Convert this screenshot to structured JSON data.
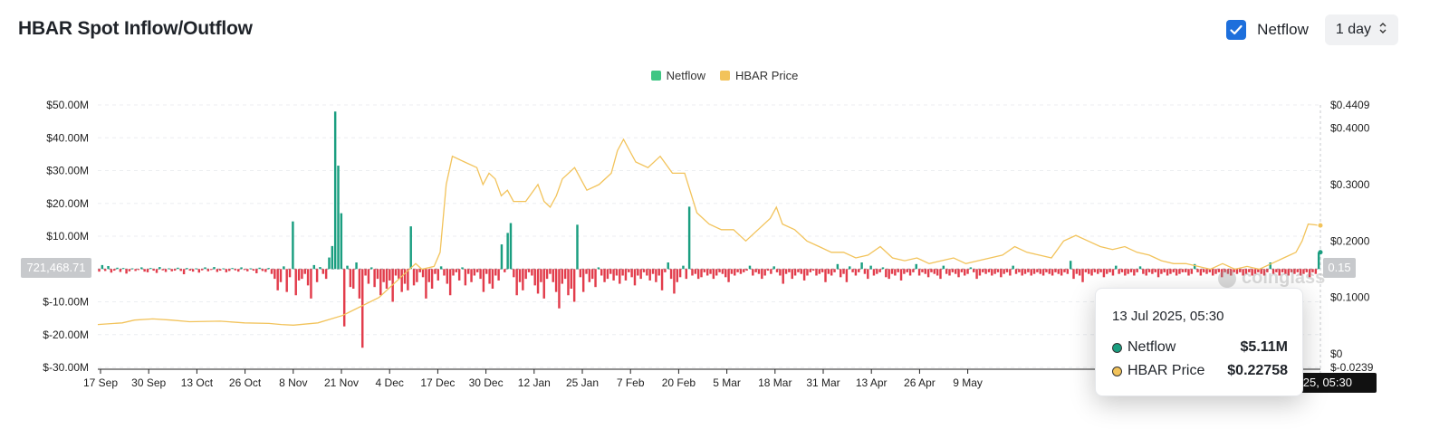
{
  "header": {
    "title": "HBAR Spot Inflow/Outflow",
    "netflow_toggle_label": "Netflow",
    "netflow_checked": true,
    "interval_label": "1 day"
  },
  "tooltip": {
    "time": "13 Jul 2025, 05:30",
    "rows": [
      {
        "name": "Netflow",
        "value": "$5.11M",
        "color": "#1a9e80"
      },
      {
        "name": "HBAR Price",
        "value": "$0.22758",
        "color": "#f2c35b"
      }
    ]
  },
  "crosshair": {
    "time_badge": "13 Jul 2025, 05:30",
    "left_badge": "721,468.71",
    "right_badge": "0.15"
  },
  "watermark": "coinglass",
  "chart_data": {
    "type": "bar+line",
    "title": "HBAR Spot Inflow/Outflow",
    "legend": {
      "position": "top-center",
      "entries": [
        "Netflow",
        "HBAR Price"
      ]
    },
    "colors": {
      "netflow_positive": "#1a9e80",
      "netflow_negative": "#e23c4b",
      "legend_netflow": "#3fc684",
      "price": "#f2c35b"
    },
    "x_tick_labels": [
      "17 Sep",
      "30 Sep",
      "13 Oct",
      "26 Oct",
      "8 Nov",
      "21 Nov",
      "4 Dec",
      "17 Dec",
      "30 Dec",
      "12 Jan",
      "25 Jan",
      "7 Feb",
      "20 Feb",
      "5 Mar",
      "18 Mar",
      "31 Mar",
      "13 Apr",
      "26 Apr",
      "9 May"
    ],
    "y_left": {
      "ticks": [
        "$50.00M",
        "$40.00M",
        "$30.00M",
        "$20.00M",
        "$10.00M",
        "$-10.00M",
        "$-20.00M",
        "$-30.00M"
      ],
      "range_millions": [
        -30,
        50
      ]
    },
    "y_right": {
      "ticks": [
        "$0.4409",
        "$0.4000",
        "$0.3000",
        "$0.2000",
        "$0.1000",
        "$0",
        "$-0.0239"
      ],
      "range": [
        -0.0239,
        0.4409
      ]
    },
    "series": [
      {
        "name": "Netflow",
        "unit": "millions USD",
        "values": [
          -0.8,
          1.2,
          -0.6,
          0.9,
          -1.1,
          -0.5,
          0.4,
          -0.9,
          0.3,
          -1.4,
          -0.7,
          0.2,
          -0.6,
          -0.3,
          0.5,
          -0.8,
          -1.0,
          0.3,
          -0.5,
          -1.2,
          0.6,
          -0.4,
          -0.9,
          0.2,
          -0.7,
          -0.5,
          0.4,
          -0.6,
          -1.6,
          0.3,
          -0.5,
          -0.8,
          0.2,
          -1.1,
          -0.4,
          0.5,
          -0.7,
          -0.3,
          0.6,
          -0.9,
          -0.5,
          0.2,
          -1.0,
          -0.6,
          0.3,
          -0.4,
          -0.8,
          0.5,
          -0.3,
          -0.7,
          0.2,
          -0.5,
          -1.3,
          0.4,
          -0.6,
          -0.9,
          0.3,
          -1.5,
          -3.0,
          -6.5,
          -4.0,
          0.8,
          -7.0,
          -2.5,
          14.5,
          -8.0,
          -3.5,
          -3.0,
          -1.5,
          -5.0,
          -9.0,
          1.2,
          -4.0,
          0.6,
          -1.5,
          -3.0,
          3.5,
          7.0,
          48.0,
          31.5,
          17.0,
          -17.5,
          1.0,
          -5.5,
          -6.0,
          2.0,
          -9.0,
          -24.0,
          -2.0,
          -4.5,
          0.5,
          -5.5,
          -3.0,
          -8.0,
          -4.0,
          -6.0,
          -3.5,
          -10.0,
          -2.0,
          -3.0,
          -7.0,
          -4.5,
          -6.5,
          13.0,
          -5.0,
          -4.0,
          -1.0,
          -2.5,
          -9.0,
          -4.0,
          -6.0,
          -1.5,
          -3.5,
          0.8,
          -2.0,
          -4.5,
          -8.0,
          -2.0,
          -1.0,
          -3.5,
          0.5,
          -5.0,
          -1.5,
          -4.0,
          -2.0,
          -1.0,
          -3.0,
          -7.0,
          -1.5,
          -4.5,
          -6.0,
          -2.0,
          -3.5,
          7.5,
          -1.0,
          11.0,
          14.0,
          -2.5,
          -8.0,
          -4.0,
          -6.5,
          -3.0,
          -1.0,
          -2.0,
          -5.0,
          -7.5,
          -4.0,
          -9.0,
          -3.0,
          -1.5,
          -4.0,
          -7.0,
          -12.0,
          -4.5,
          -3.0,
          -8.0,
          -6.0,
          -10.0,
          13.5,
          -2.5,
          -7.0,
          -1.5,
          -4.0,
          -3.0,
          -5.5,
          0.5,
          -2.0,
          -4.0,
          -3.0,
          -1.5,
          -3.5,
          -2.0,
          -4.5,
          -2.0,
          -3.5,
          -1.0,
          -2.5,
          -5.0,
          -2.0,
          -3.0,
          -1.0,
          -2.0,
          -3.5,
          -1.5,
          -4.0,
          -2.0,
          -6.5,
          -1.0,
          2.0,
          -3.0,
          -7.5,
          -4.0,
          -2.5,
          1.0,
          -3.0,
          19.0,
          -2.0,
          -1.5,
          -3.0,
          -2.5,
          -1.0,
          -2.0,
          -1.5,
          -3.0,
          -2.0,
          -1.0,
          -1.5,
          -2.5,
          -4.0,
          -1.5,
          -2.0,
          -1.0,
          -1.5,
          -1.0,
          -0.5,
          1.0,
          -2.0,
          -1.0,
          -1.5,
          -3.0,
          -2.0,
          -0.5,
          -1.5,
          0.8,
          -1.0,
          -2.0,
          -4.5,
          -1.5,
          -1.0,
          -3.0,
          -2.0,
          -1.0,
          -1.5,
          -3.5,
          -2.0,
          -1.0,
          -0.5,
          -2.0,
          -1.5,
          -1.0,
          -4.0,
          -1.5,
          -2.0,
          -1.0,
          1.5,
          -2.5,
          -1.5,
          -4.0,
          0.8,
          -1.0,
          -2.0,
          -1.0,
          2.0,
          -1.5,
          -3.0,
          1.0,
          -2.0,
          -1.5,
          -1.0,
          0.5,
          -2.5,
          -3.0,
          -1.5,
          -2.0,
          -1.0,
          -3.5,
          -1.5,
          -1.0,
          -2.0,
          -1.0,
          1.5,
          -2.0,
          -1.0,
          -1.5,
          -2.5,
          -1.0,
          -1.5,
          -2.0,
          -3.0,
          1.0,
          -1.5,
          -2.0,
          -1.0,
          -1.5,
          -2.5,
          -1.0,
          -2.0,
          -1.5,
          0.5,
          -1.0,
          -3.0,
          -2.0,
          -1.0,
          -1.5,
          -1.0,
          -2.0,
          -1.5,
          -1.0,
          -2.5,
          -1.5,
          -1.0,
          -2.0,
          1.0,
          -1.5,
          -1.0,
          -2.0,
          -1.5,
          -1.0,
          -2.0,
          -1.5,
          -1.0,
          -1.5,
          -2.0,
          -1.0,
          -1.5,
          -2.0,
          -1.0,
          -1.5,
          -2.0,
          -1.0,
          -1.5,
          2.5,
          -3.0,
          -1.5,
          -2.0,
          -4.0,
          -1.0,
          -1.5,
          -2.0,
          -1.0,
          -1.5,
          -1.0,
          -2.5,
          -1.5,
          -1.0,
          -2.0,
          1.0,
          -1.5,
          -1.0,
          -2.0,
          -1.5,
          -1.0,
          -2.0,
          -1.0,
          0.8,
          -1.5,
          -2.0,
          -1.0,
          -1.5,
          -1.0,
          -2.5,
          -1.5,
          -1.0,
          -2.0,
          -1.5,
          -1.0,
          -2.0,
          -1.5,
          -1.0,
          -1.0,
          -2.0,
          -1.5,
          1.5,
          -1.0,
          -2.0,
          -1.0,
          -1.5,
          -1.0,
          -2.0,
          -1.5,
          -1.0,
          -2.5,
          -1.0,
          -1.5,
          -2.0,
          -1.0,
          -1.5,
          -1.0,
          -2.0,
          -1.5,
          -1.0,
          -2.0,
          -1.5,
          -1.0,
          -1.5,
          -2.0,
          -1.0,
          2.0,
          -1.5,
          -1.0,
          -2.0,
          -1.0,
          -1.5,
          -2.0,
          -1.0,
          -1.5,
          -1.0,
          -2.0,
          -1.5,
          -1.0,
          -2.5,
          -1.0,
          -1.5,
          5.11
        ]
      },
      {
        "name": "HBAR Price",
        "unit": "USD",
        "points_x_fraction": [
          0,
          0.02,
          0.03,
          0.045,
          0.06,
          0.075,
          0.1,
          0.12,
          0.14,
          0.15,
          0.16,
          0.18,
          0.2,
          0.23,
          0.25,
          0.26,
          0.265,
          0.275,
          0.28,
          0.285,
          0.29,
          0.3,
          0.31,
          0.315,
          0.32,
          0.325,
          0.33,
          0.335,
          0.34,
          0.35,
          0.36,
          0.365,
          0.37,
          0.375,
          0.38,
          0.39,
          0.4,
          0.41,
          0.42,
          0.425,
          0.43,
          0.44,
          0.45,
          0.46,
          0.47,
          0.48,
          0.49,
          0.5,
          0.51,
          0.52,
          0.53,
          0.54,
          0.55,
          0.555,
          0.56,
          0.57,
          0.58,
          0.59,
          0.6,
          0.61,
          0.62,
          0.63,
          0.64,
          0.65,
          0.66,
          0.67,
          0.68,
          0.69,
          0.7,
          0.71,
          0.72,
          0.73,
          0.74,
          0.75,
          0.76,
          0.77,
          0.78,
          0.79,
          0.8,
          0.81,
          0.82,
          0.83,
          0.84,
          0.85,
          0.86,
          0.87,
          0.88,
          0.89,
          0.9,
          0.91,
          0.92,
          0.93,
          0.94,
          0.95,
          0.96,
          0.97,
          0.975,
          0.98,
          0.985,
          0.99,
          1.0
        ],
        "values": [
          0.052,
          0.055,
          0.06,
          0.062,
          0.06,
          0.057,
          0.058,
          0.055,
          0.054,
          0.052,
          0.051,
          0.055,
          0.068,
          0.1,
          0.14,
          0.16,
          0.15,
          0.155,
          0.18,
          0.3,
          0.35,
          0.34,
          0.33,
          0.3,
          0.32,
          0.31,
          0.28,
          0.29,
          0.27,
          0.27,
          0.3,
          0.27,
          0.26,
          0.28,
          0.31,
          0.33,
          0.29,
          0.3,
          0.32,
          0.36,
          0.38,
          0.34,
          0.33,
          0.35,
          0.32,
          0.32,
          0.25,
          0.23,
          0.22,
          0.22,
          0.2,
          0.22,
          0.24,
          0.26,
          0.23,
          0.22,
          0.2,
          0.19,
          0.18,
          0.18,
          0.17,
          0.175,
          0.19,
          0.17,
          0.165,
          0.17,
          0.16,
          0.165,
          0.17,
          0.16,
          0.165,
          0.17,
          0.175,
          0.19,
          0.18,
          0.175,
          0.17,
          0.2,
          0.21,
          0.2,
          0.19,
          0.185,
          0.19,
          0.18,
          0.175,
          0.165,
          0.16,
          0.16,
          0.155,
          0.15,
          0.16,
          0.15,
          0.155,
          0.15,
          0.16,
          0.17,
          0.175,
          0.18,
          0.2,
          0.23,
          0.22758
        ]
      }
    ]
  }
}
